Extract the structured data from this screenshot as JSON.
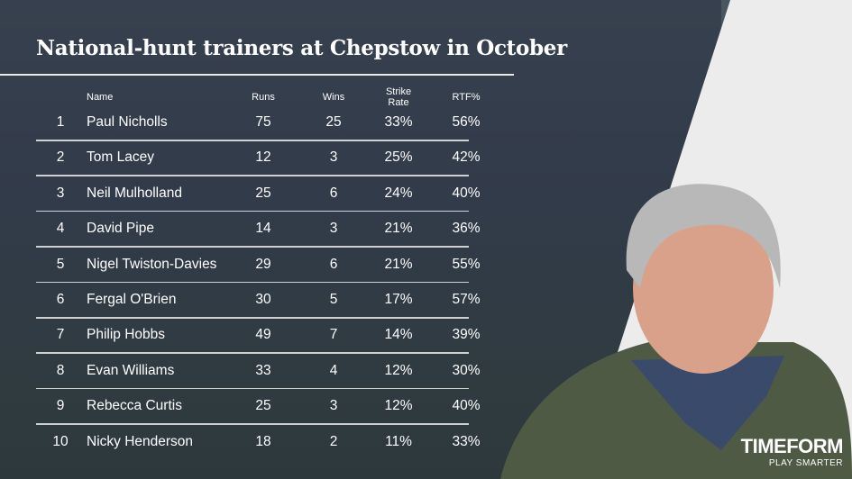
{
  "title": "National-hunt trainers at Chepstow in October",
  "brand": {
    "name": "TIMEFORM",
    "tagline": "PLAY SMARTER"
  },
  "colors": {
    "text": "#ffffff",
    "overlay": "#2f3947",
    "panel": "#efefef"
  },
  "chart_data": {
    "type": "table",
    "title": "National-hunt trainers at Chepstow in October",
    "columns": [
      "",
      "Name",
      "Runs",
      "Wins",
      "Strike Rate",
      "RTF%"
    ],
    "rows": [
      {
        "rank": "1",
        "name": "Paul Nicholls",
        "runs": "75",
        "wins": "25",
        "strike_rate": "33%",
        "rtf": "56%"
      },
      {
        "rank": "2",
        "name": "Tom Lacey",
        "runs": "12",
        "wins": "3",
        "strike_rate": "25%",
        "rtf": "42%"
      },
      {
        "rank": "3",
        "name": "Neil Mulholland",
        "runs": "25",
        "wins": "6",
        "strike_rate": "24%",
        "rtf": "40%"
      },
      {
        "rank": "4",
        "name": "David Pipe",
        "runs": "14",
        "wins": "3",
        "strike_rate": "21%",
        "rtf": "36%"
      },
      {
        "rank": "5",
        "name": "Nigel Twiston-Davies",
        "runs": "29",
        "wins": "6",
        "strike_rate": "21%",
        "rtf": "55%"
      },
      {
        "rank": "6",
        "name": "Fergal O'Brien",
        "runs": "30",
        "wins": "5",
        "strike_rate": "17%",
        "rtf": "57%"
      },
      {
        "rank": "7",
        "name": "Philip Hobbs",
        "runs": "49",
        "wins": "7",
        "strike_rate": "14%",
        "rtf": "39%"
      },
      {
        "rank": "8",
        "name": "Evan Williams",
        "runs": "33",
        "wins": "4",
        "strike_rate": "12%",
        "rtf": "30%"
      },
      {
        "rank": "9",
        "name": "Rebecca Curtis",
        "runs": "25",
        "wins": "3",
        "strike_rate": "12%",
        "rtf": "40%"
      },
      {
        "rank": "10",
        "name": "Nicky Henderson",
        "runs": "18",
        "wins": "2",
        "strike_rate": "11%",
        "rtf": "33%"
      }
    ]
  }
}
